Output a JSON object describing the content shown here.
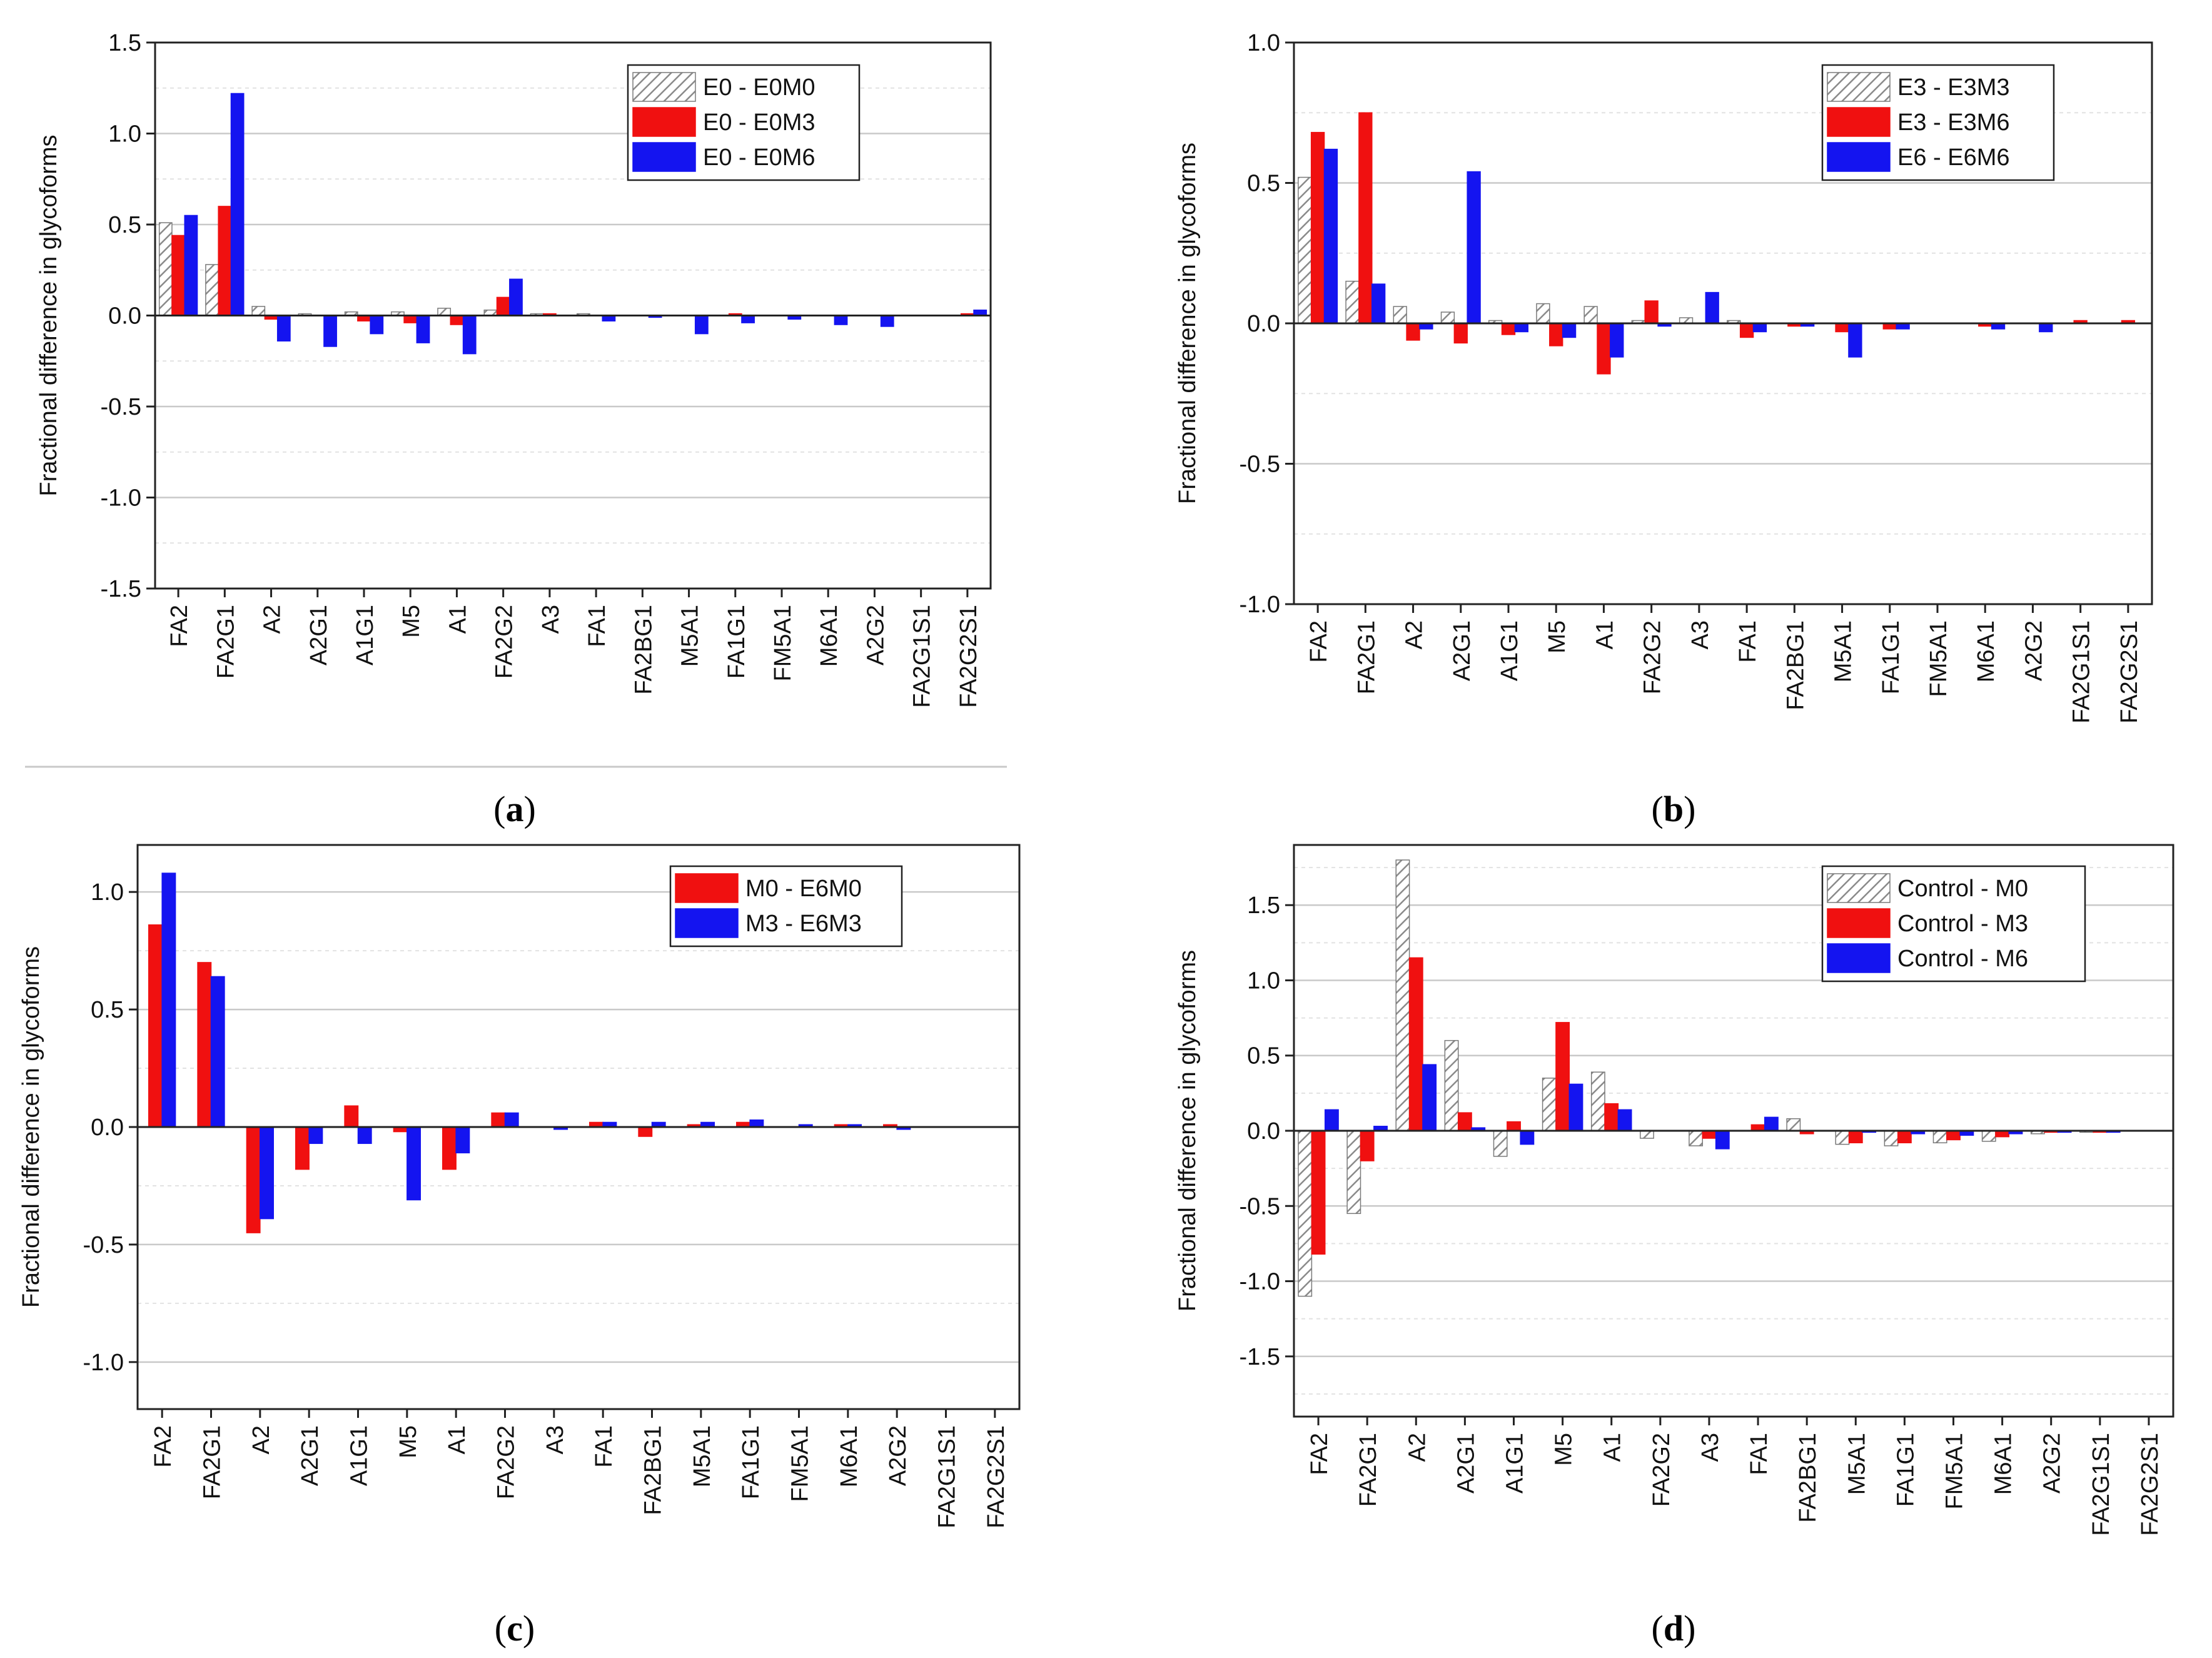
{
  "figure": {
    "colors": {
      "hatch": "#d0d0d0",
      "red": "#f01010",
      "blue": "#1414f0"
    },
    "panels": [
      {
        "id": "a",
        "caption": "a",
        "chart_data": {
          "type": "bar",
          "ylabel": "Fractional difference in glycoforms",
          "ylim": [
            -1.5,
            1.5
          ],
          "yticks": [
            -1.5,
            -1.0,
            -0.5,
            0.0,
            0.5,
            1.0,
            1.5
          ],
          "ytick_labels": [
            "-1.5",
            "-1.0",
            "-0.5",
            "0.0",
            "0.5",
            "1.0",
            "1.5"
          ],
          "grid": true,
          "legend_position": "top-right",
          "categories": [
            "FA2",
            "FA2G1",
            "A2",
            "A2G1",
            "A1G1",
            "M5",
            "A1",
            "FA2G2",
            "A3",
            "FA1",
            "FA2BG1",
            "M5A1",
            "FA1G1",
            "FM5A1",
            "M6A1",
            "A2G2",
            "FA2G1S1",
            "FA2G2S1"
          ],
          "series": [
            {
              "name": "E0 - E0M0",
              "style": "hatch",
              "values": [
                0.51,
                0.28,
                0.05,
                0.01,
                0.02,
                0.02,
                0.04,
                0.03,
                0.01,
                0.01,
                0.0,
                0.0,
                0.0,
                0.0,
                0.0,
                0.0,
                0.0,
                0.0
              ]
            },
            {
              "name": "E0 - E0M3",
              "style": "red",
              "values": [
                0.44,
                0.6,
                -0.02,
                0.0,
                -0.03,
                -0.04,
                -0.05,
                0.1,
                0.01,
                0.0,
                0.0,
                0.0,
                0.01,
                0.0,
                0.0,
                0.0,
                0.0,
                0.01
              ]
            },
            {
              "name": "E0 - E0M6",
              "style": "blue",
              "values": [
                0.55,
                1.22,
                -0.14,
                -0.17,
                -0.1,
                -0.15,
                -0.21,
                0.2,
                0.0,
                -0.03,
                -0.01,
                -0.1,
                -0.04,
                -0.02,
                -0.05,
                -0.06,
                0.0,
                0.03
              ]
            }
          ]
        }
      },
      {
        "id": "b",
        "caption": "b",
        "chart_data": {
          "type": "bar",
          "ylabel": "Fractional difference in glycoforms",
          "ylim": [
            -1.0,
            1.0
          ],
          "yticks": [
            -1.0,
            -0.5,
            0.0,
            0.5,
            1.0
          ],
          "ytick_labels": [
            "-1.0",
            "-0.5",
            "0.0",
            "0.5",
            "1.0"
          ],
          "grid": true,
          "legend_position": "top-right",
          "categories": [
            "FA2",
            "FA2G1",
            "A2",
            "A2G1",
            "A1G1",
            "M5",
            "A1",
            "FA2G2",
            "A3",
            "FA1",
            "FA2BG1",
            "M5A1",
            "FA1G1",
            "FM5A1",
            "M6A1",
            "A2G2",
            "FA2G1S1",
            "FA2G2S1"
          ],
          "series": [
            {
              "name": "E3 - E3M3",
              "style": "hatch",
              "values": [
                0.52,
                0.15,
                0.06,
                0.04,
                0.01,
                0.07,
                0.06,
                0.01,
                0.02,
                0.01,
                0.0,
                0.0,
                0.0,
                0.0,
                0.0,
                0.0,
                0.0,
                0.0
              ]
            },
            {
              "name": "E3 - E3M6",
              "style": "red",
              "values": [
                0.68,
                0.75,
                -0.06,
                -0.07,
                -0.04,
                -0.08,
                -0.18,
                0.08,
                0.0,
                -0.05,
                -0.01,
                -0.03,
                -0.02,
                0.0,
                -0.01,
                0.0,
                0.01,
                0.01
              ]
            },
            {
              "name": "E6 - E6M6",
              "style": "blue",
              "values": [
                0.62,
                0.14,
                -0.02,
                0.54,
                -0.03,
                -0.05,
                -0.12,
                -0.01,
                0.11,
                -0.03,
                -0.01,
                -0.12,
                -0.02,
                0.0,
                -0.02,
                -0.03,
                0.0,
                0.0
              ]
            }
          ]
        }
      },
      {
        "id": "c",
        "caption": "c",
        "chart_data": {
          "type": "bar",
          "ylabel": "Fractional difference in glycoforms",
          "ylim": [
            -1.2,
            1.2
          ],
          "yticks": [
            -1.0,
            -0.5,
            0.0,
            0.5,
            1.0
          ],
          "ytick_labels": [
            "-1.0",
            "-0.5",
            "0.0",
            "0.5",
            "1.0"
          ],
          "grid": true,
          "legend_position": "top-right",
          "categories": [
            "FA2",
            "FA2G1",
            "A2",
            "A2G1",
            "A1G1",
            "M5",
            "A1",
            "FA2G2",
            "A3",
            "FA1",
            "FA2BG1",
            "M5A1",
            "FA1G1",
            "FM5A1",
            "M6A1",
            "A2G2",
            "FA2G1S1",
            "FA2G2S1"
          ],
          "series": [
            {
              "name": "M0 - E6M0",
              "style": "red",
              "values": [
                0.86,
                0.7,
                -0.45,
                -0.18,
                0.09,
                -0.02,
                -0.18,
                0.06,
                0.0,
                0.02,
                -0.04,
                0.01,
                0.02,
                0.0,
                0.01,
                0.01,
                0.0,
                0.0
              ]
            },
            {
              "name": "M3 - E6M3",
              "style": "blue",
              "values": [
                1.08,
                0.64,
                -0.39,
                -0.07,
                -0.07,
                -0.31,
                -0.11,
                0.06,
                -0.01,
                0.02,
                0.02,
                0.02,
                0.03,
                0.01,
                0.01,
                -0.01,
                0.0,
                0.0
              ]
            }
          ]
        }
      },
      {
        "id": "d",
        "caption": "d",
        "chart_data": {
          "type": "bar",
          "ylabel": "Fractional difference in glycoforms",
          "ylim": [
            -1.9,
            1.9
          ],
          "yticks": [
            -1.5,
            -1.0,
            -0.5,
            0.0,
            0.5,
            1.0,
            1.5
          ],
          "ytick_labels": [
            "-1.5",
            "-1.0",
            "-0.5",
            "0.0",
            "0.5",
            "1.0",
            "1.5"
          ],
          "grid": true,
          "legend_position": "top-right",
          "categories": [
            "FA2",
            "FA2G1",
            "A2",
            "A2G1",
            "A1G1",
            "M5",
            "A1",
            "FA2G2",
            "A3",
            "FA1",
            "FA2BG1",
            "M5A1",
            "FA1G1",
            "FM5A1",
            "M6A1",
            "A2G2",
            "FA2G1S1",
            "FA2G2S1"
          ],
          "series": [
            {
              "name": "Control - M0",
              "style": "hatch",
              "values": [
                -1.1,
                -0.55,
                1.8,
                0.6,
                -0.17,
                0.35,
                0.39,
                -0.05,
                -0.1,
                0.0,
                0.08,
                -0.09,
                -0.1,
                -0.08,
                -0.07,
                -0.02,
                -0.01,
                0.0
              ]
            },
            {
              "name": "Control - M3",
              "style": "red",
              "values": [
                -0.82,
                -0.2,
                1.15,
                0.12,
                0.06,
                0.72,
                0.18,
                0.0,
                -0.05,
                0.04,
                -0.02,
                -0.08,
                -0.08,
                -0.06,
                -0.04,
                -0.01,
                -0.01,
                0.0
              ]
            },
            {
              "name": "Control - M6",
              "style": "blue",
              "values": [
                0.14,
                0.03,
                0.44,
                0.02,
                -0.09,
                0.31,
                0.14,
                0.0,
                -0.12,
                0.09,
                0.0,
                -0.01,
                -0.02,
                -0.03,
                -0.02,
                -0.01,
                -0.01,
                0.0
              ]
            }
          ]
        }
      }
    ]
  }
}
